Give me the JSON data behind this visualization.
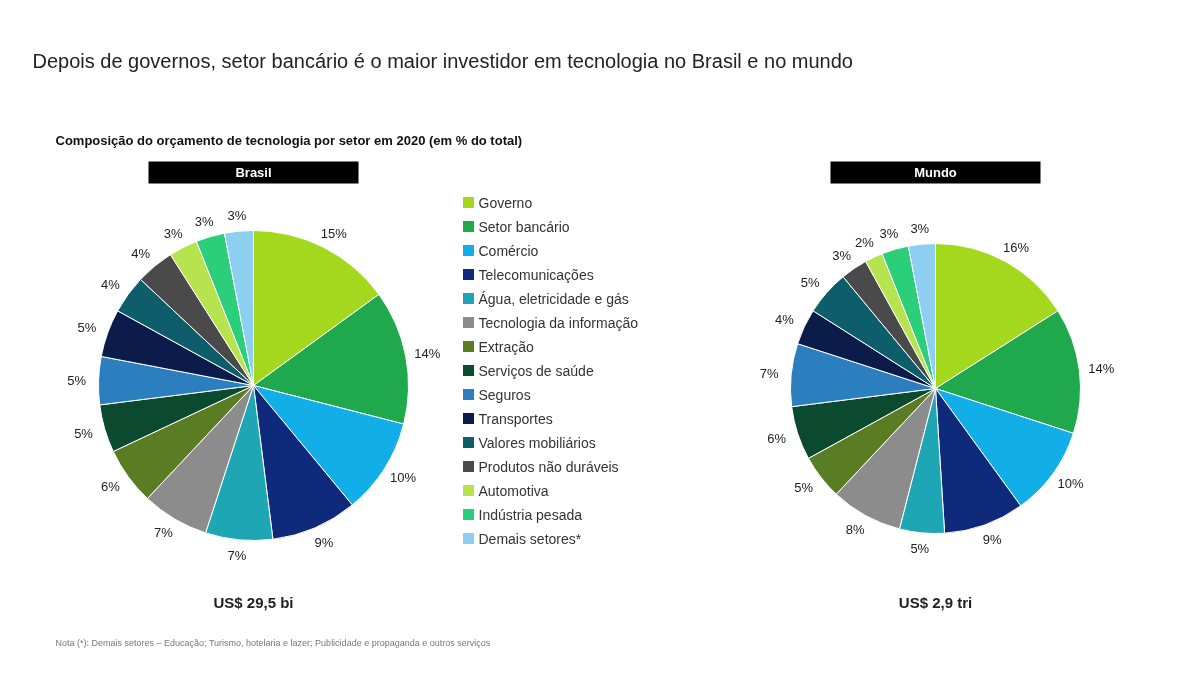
{
  "chart_data": [
    {
      "type": "pie",
      "title": "Brasil",
      "annotations": [
        "Depois de governos, setor bancário é o maior investidor em tecnologia no Brasil e no mundo",
        "Composição do orçamento de tecnologia por setor em 2020 (em % do total)",
        "US$ 29,5 bi",
        "Nota (*): Demais setores – Educação; Turismo, hotelaria e lazer; Publicidade e propaganda e outros serviços"
      ],
      "categories": [
        "Governo",
        "Setor bancário",
        "Comércio",
        "Telecomunicações",
        "Água, eletricidade e gás",
        "Tecnologia da informação",
        "Extração",
        "Serviços de saúde",
        "Seguros",
        "Transportes",
        "Valores mobiliários",
        "Produtos não duráveis",
        "Automotiva",
        "Indústria pesada",
        "Demais setores*"
      ],
      "values": [
        15,
        14,
        10,
        9,
        7,
        7,
        6,
        5,
        5,
        5,
        4,
        4,
        3,
        3,
        3
      ],
      "value_labels": [
        "15%",
        "14%",
        "10%",
        "9%",
        "7%",
        "7%",
        "6%",
        "5%",
        "5%",
        "5%",
        "4%",
        "4%",
        "3%",
        "3%",
        "3%"
      ],
      "colors": [
        "#a3d81f",
        "#1fa84c",
        "#12aee8",
        "#0f2a7a",
        "#1fa6b5",
        "#8c8c8c",
        "#5a7d23",
        "#0c4a30",
        "#2c7fbf",
        "#0b1c4a",
        "#0d5e6a",
        "#4a4a4a",
        "#b7e34f",
        "#2bcf7a",
        "#8ccff0"
      ],
      "legend": "right"
    },
    {
      "type": "pie",
      "title": "Mundo",
      "annotations": [
        "US$ 2,9 tri"
      ],
      "categories": [
        null,
        null,
        null,
        null,
        null,
        null,
        null,
        null,
        null,
        null,
        null,
        null,
        null,
        null,
        null
      ],
      "values": [
        16,
        14,
        10,
        9,
        5,
        8,
        5,
        6,
        7,
        4,
        5,
        3,
        2,
        3,
        3
      ],
      "value_labels": [
        "16%",
        "14%",
        "10%",
        "9%",
        "5%",
        "8%",
        "5%",
        "6%",
        "7%",
        "4%",
        "5%",
        "3%",
        "2%",
        "3%",
        "3%"
      ],
      "colors": [
        "#a3d81f",
        "#1fa84c",
        "#12aee8",
        "#0f2a7a",
        "#1fa6b5",
        "#8c8c8c",
        "#5a7d23",
        "#0c4a30",
        "#2c7fbf",
        "#0b1c4a",
        "#0d5e6a",
        "#4a4a4a",
        "#b7e34f",
        "#2bcf7a",
        "#8ccff0"
      ]
    }
  ]
}
